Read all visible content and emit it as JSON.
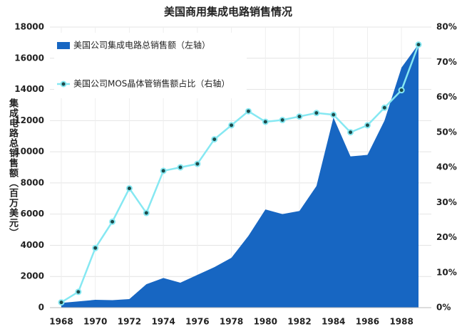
{
  "chart_data": {
    "type": "area",
    "title": "美国商用集成电路销售情况",
    "y_label": "集成电路总销售额（百万美元）",
    "x": [
      1968,
      1969,
      1970,
      1971,
      1972,
      1973,
      1974,
      1975,
      1976,
      1977,
      1978,
      1979,
      1980,
      1981,
      1982,
      1983,
      1984,
      1985,
      1986,
      1987,
      1988,
      1989
    ],
    "series": [
      {
        "name": "美国公司集成电路总销售额（左轴）",
        "type": "area",
        "color": "#1766c2",
        "values": [
          300,
          400,
          500,
          480,
          550,
          1500,
          1900,
          1600,
          2100,
          2600,
          3200,
          4600,
          6300,
          6000,
          6200,
          7800,
          12200,
          9700,
          9800,
          12000,
          15400,
          16900
        ]
      },
      {
        "name": "美国公司MOS晶体管销售额占比（右轴）",
        "type": "line",
        "axis": "y2",
        "color": "#86e8f2",
        "values": [
          1.5,
          4.5,
          17,
          24.5,
          34,
          27,
          39,
          40,
          41,
          48,
          52,
          56,
          53,
          53.5,
          54.5,
          55.5,
          55,
          50,
          52,
          57,
          62,
          75
        ]
      }
    ],
    "xlim": [
      1968,
      1989
    ],
    "xticks": [
      1968,
      1970,
      1972,
      1974,
      1976,
      1978,
      1980,
      1982,
      1984,
      1986,
      1988
    ],
    "ylim": [
      0,
      18000
    ],
    "yticks": [
      0,
      2000,
      4000,
      6000,
      8000,
      10000,
      12000,
      14000,
      16000,
      18000
    ],
    "y2lim": [
      0,
      80
    ],
    "y2ticks": [
      {
        "value": 0,
        "label": "0%"
      },
      {
        "value": 10,
        "label": "10%"
      },
      {
        "value": 20,
        "label": "20%"
      },
      {
        "value": 30,
        "label": "30%"
      },
      {
        "value": 40,
        "label": "40%"
      },
      {
        "value": 50,
        "label": "50%"
      },
      {
        "value": 60,
        "label": "60%"
      },
      {
        "value": 70,
        "label": "70%"
      },
      {
        "value": 80,
        "label": "80%"
      }
    ],
    "grid": true,
    "legend": "top-left"
  }
}
